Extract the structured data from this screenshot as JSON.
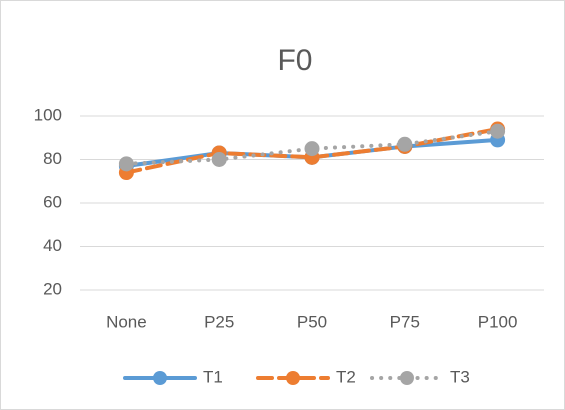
{
  "chart_data": {
    "type": "line",
    "title": "F0",
    "categories": [
      "None",
      "P25",
      "P50",
      "P75",
      "P100"
    ],
    "series": [
      {
        "name": "T1",
        "color": "#5b9bd5",
        "dash": "solid",
        "values": [
          77,
          83,
          81,
          86,
          89
        ]
      },
      {
        "name": "T2",
        "color": "#ed7d31",
        "dash": "dash",
        "values": [
          74,
          83,
          81,
          86,
          94
        ]
      },
      {
        "name": "T3",
        "color": "#a5a5a5",
        "dash": "dot",
        "values": [
          78,
          80,
          85,
          87,
          93
        ]
      }
    ],
    "ylim": [
      20,
      100
    ],
    "yticks": [
      20,
      40,
      60,
      80,
      100
    ],
    "grid": true,
    "legend": "bottom"
  }
}
